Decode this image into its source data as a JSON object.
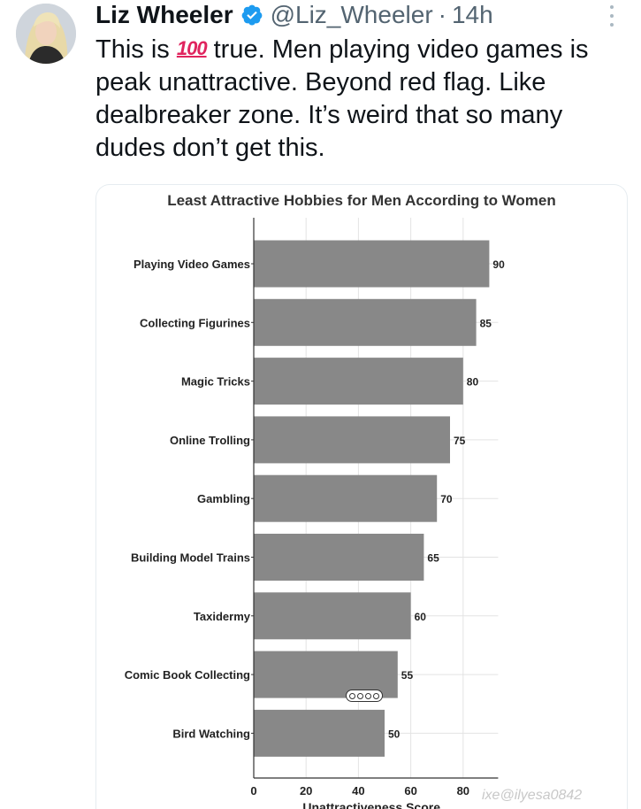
{
  "author": {
    "name": "Liz Wheeler",
    "handle": "@Liz_Wheeler",
    "separator": "·",
    "time": "14h",
    "verified": true,
    "avatar_icon": "profile-photo"
  },
  "tweet": {
    "text_before": "This is ",
    "emoji": "100",
    "text_after": " true. Men playing video games is peak unattractive. Beyond red flag. Like dealbreaker zone. It’s weird that so many dudes don’t get this."
  },
  "colors": {
    "bar": "#888888",
    "verified": "#1d9bf0",
    "muted": "#536471",
    "emoji": "#e0245e"
  },
  "chart_data": {
    "type": "bar",
    "orientation": "horizontal",
    "title": "Least Attractive Hobbies for Men According to Women",
    "categories": [
      "Playing Video Games",
      "Collecting Figurines",
      "Magic Tricks",
      "Online Trolling",
      "Gambling",
      "Building Model Trains",
      "Taxidermy",
      "Comic Book Collecting",
      "Bird Watching"
    ],
    "values": [
      90,
      85,
      80,
      75,
      70,
      65,
      60,
      55,
      50
    ],
    "xlabel": "Unattractiveness Score",
    "ylabel": "",
    "xlim": [
      0,
      90
    ],
    "xticks": [
      0,
      20,
      40,
      60,
      80
    ],
    "grid": true
  },
  "watermark": "ixe@ilyesa0842"
}
